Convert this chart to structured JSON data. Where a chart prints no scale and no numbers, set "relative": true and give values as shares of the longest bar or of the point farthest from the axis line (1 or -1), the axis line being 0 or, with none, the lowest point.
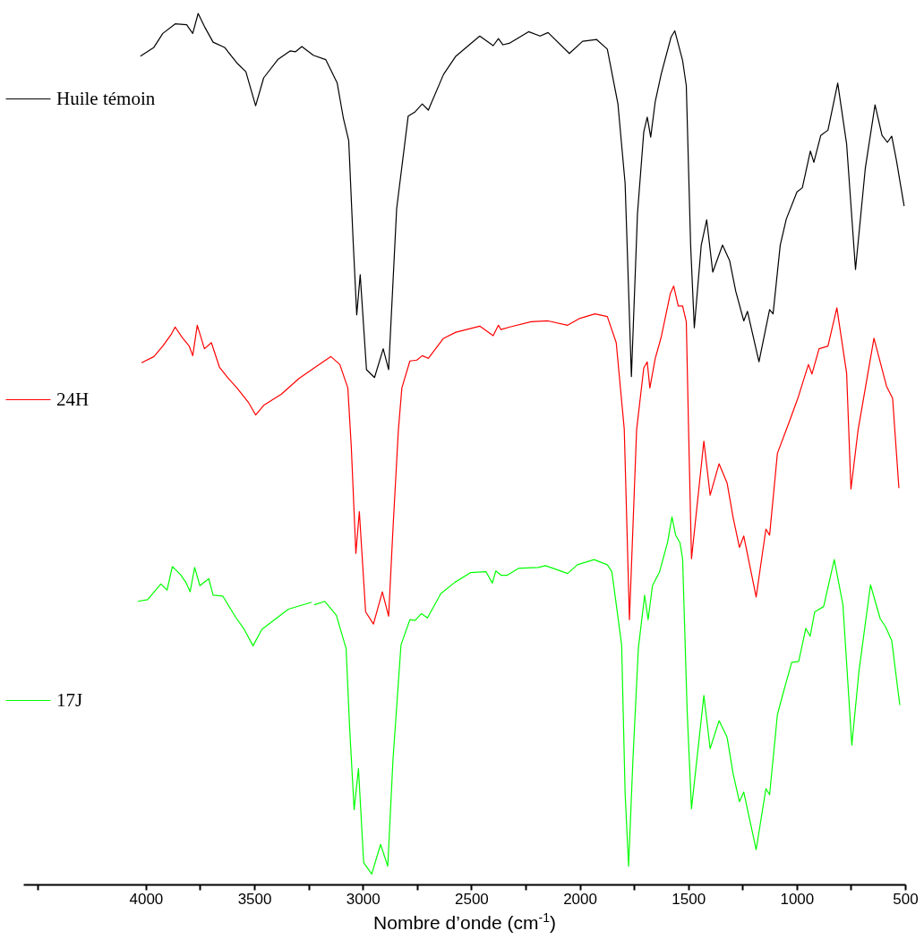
{
  "chart_data": {
    "type": "line",
    "relative": true,
    "xlabel": "Nombre d’onde (cm$^{-1}$)",
    "xlim": [
      4565,
      500
    ],
    "xticks": [
      {
        "value": 4500,
        "label": null
      },
      4000,
      {
        "value": 3750,
        "label": null
      },
      3500,
      {
        "value": 3250,
        "label": null
      },
      3000,
      {
        "value": 2750,
        "label": null
      },
      2500,
      {
        "value": 2250,
        "label": null
      },
      2000,
      {
        "value": 1750,
        "label": null
      },
      1500,
      {
        "value": 1250,
        "label": null
      },
      1000,
      {
        "value": 750,
        "label": null
      },
      500
    ],
    "tick_labels": "x",
    "grid": false,
    "legend": "top left",
    "marker": "none",
    "line_style": "solid",
    "series": [
      {
        "name": "Huile témoin",
        "color": "#000000",
        "x": [
          4025,
          3963,
          3922,
          3865,
          3812,
          3784,
          3759,
          3730,
          3690,
          3637,
          3580,
          3539,
          3494,
          3457,
          3392,
          3334,
          3310,
          3281,
          3228,
          3171,
          3118,
          3089,
          3065,
          3045,
          3028,
          3012,
          2983,
          2946,
          2906,
          2881,
          2844,
          2791,
          2759,
          2726,
          2698,
          2628,
          2571,
          2461,
          2399,
          2375,
          2354,
          2322,
          2236,
          2183,
          2146,
          2048,
          1987,
          1922,
          1873,
          1824,
          1791,
          1762,
          1734,
          1705,
          1689,
          1673,
          1652,
          1624,
          1579,
          1562,
          1526,
          1509,
          1489,
          1472,
          1440,
          1415,
          1387,
          1342,
          1309,
          1281,
          1244,
          1227,
          1174,
          1125,
          1109,
          1076,
          1048,
          999,
          974,
          937,
          921,
          889,
          856,
          811,
          770,
          729,
          684,
          639,
          607,
          582,
          562,
          541,
          505
        ],
        "values": [
          0.951,
          0.961,
          0.977,
          0.988,
          0.987,
          0.977,
          1.0,
          0.985,
          0.967,
          0.961,
          0.943,
          0.933,
          0.894,
          0.926,
          0.947,
          0.957,
          0.956,
          0.962,
          0.952,
          0.947,
          0.92,
          0.879,
          0.854,
          0.741,
          0.654,
          0.7,
          0.591,
          0.582,
          0.615,
          0.591,
          0.776,
          0.882,
          0.887,
          0.896,
          0.889,
          0.93,
          0.951,
          0.974,
          0.963,
          0.971,
          0.964,
          0.966,
          0.979,
          0.974,
          0.978,
          0.954,
          0.968,
          0.97,
          0.959,
          0.896,
          0.805,
          0.583,
          0.77,
          0.864,
          0.881,
          0.858,
          0.899,
          0.931,
          0.973,
          0.98,
          0.946,
          0.917,
          0.734,
          0.639,
          0.734,
          0.763,
          0.703,
          0.734,
          0.716,
          0.681,
          0.647,
          0.658,
          0.6,
          0.66,
          0.655,
          0.734,
          0.764,
          0.795,
          0.8,
          0.842,
          0.829,
          0.86,
          0.866,
          0.92,
          0.85,
          0.706,
          0.822,
          0.895,
          0.86,
          0.852,
          0.859,
          0.832,
          0.779
        ]
      },
      {
        "name": "24H",
        "color": "#ff0000",
        "x": [
          4020,
          3963,
          3922,
          3882,
          3865,
          3833,
          3800,
          3784,
          3763,
          3730,
          3698,
          3661,
          3620,
          3580,
          3526,
          3494,
          3457,
          3375,
          3294,
          3200,
          3147,
          3106,
          3069,
          3053,
          3032,
          3016,
          2987,
          2951,
          2910,
          2881,
          2861,
          2836,
          2820,
          2783,
          2751,
          2726,
          2698,
          2628,
          2571,
          2461,
          2399,
          2375,
          2363,
          2322,
          2224,
          2146,
          2056,
          1999,
          1930,
          1873,
          1832,
          1795,
          1771,
          1738,
          1705,
          1689,
          1677,
          1652,
          1624,
          1583,
          1567,
          1546,
          1526,
          1509,
          1497,
          1485,
          1428,
          1399,
          1358,
          1321,
          1293,
          1264,
          1244,
          1187,
          1142,
          1125,
          1089,
          1036,
          995,
          946,
          930,
          897,
          856,
          815,
          770,
          750,
          717,
          644,
          586,
          558,
          529
        ],
        "values": [
          0.599,
          0.606,
          0.618,
          0.632,
          0.64,
          0.628,
          0.618,
          0.607,
          0.642,
          0.615,
          0.622,
          0.594,
          0.581,
          0.57,
          0.553,
          0.539,
          0.55,
          0.563,
          0.581,
          0.597,
          0.606,
          0.597,
          0.57,
          0.502,
          0.38,
          0.428,
          0.313,
          0.299,
          0.336,
          0.308,
          0.408,
          0.522,
          0.57,
          0.601,
          0.602,
          0.607,
          0.604,
          0.627,
          0.634,
          0.641,
          0.63,
          0.642,
          0.637,
          0.64,
          0.646,
          0.647,
          0.642,
          0.65,
          0.655,
          0.652,
          0.622,
          0.523,
          0.304,
          0.522,
          0.593,
          0.6,
          0.57,
          0.604,
          0.629,
          0.678,
          0.687,
          0.664,
          0.664,
          0.646,
          0.506,
          0.374,
          0.509,
          0.447,
          0.483,
          0.461,
          0.421,
          0.387,
          0.4,
          0.33,
          0.408,
          0.401,
          0.495,
          0.53,
          0.558,
          0.597,
          0.586,
          0.615,
          0.618,
          0.662,
          0.587,
          0.454,
          0.522,
          0.627,
          0.572,
          0.558,
          0.455
        ]
      },
      {
        "name": "17J",
        "color": "#00ff00",
        "x": [
          4037,
          3992,
          3931,
          3902,
          3878,
          3841,
          3816,
          3796,
          3775,
          3751,
          3710,
          3690,
          3645,
          3584,
          3547,
          3506,
          3465,
          3343,
          3236,
          3230,
          3224,
          3175,
          3122,
          3077,
          3061,
          3040,
          3020,
          2996,
          2959,
          2918,
          2885,
          2861,
          2824,
          2783,
          2759,
          2730,
          2702,
          2640,
          2575,
          2504,
          2432,
          2403,
          2387,
          2363,
          2334,
          2281,
          2191,
          2158,
          2056,
          2011,
          1934,
          1873,
          1852,
          1807,
          1791,
          1775,
          1755,
          1730,
          1701,
          1685,
          1665,
          1632,
          1595,
          1575,
          1558,
          1538,
          1526,
          1505,
          1485,
          1428,
          1399,
          1358,
          1321,
          1293,
          1264,
          1244,
          1187,
          1142,
          1125,
          1089,
          1060,
          1023,
          991,
          958,
          938,
          917,
          876,
          827,
          787,
          746,
          713,
          660,
          615,
          591,
          562,
          525
        ],
        "values": [
          0.325,
          0.327,
          0.345,
          0.338,
          0.365,
          0.356,
          0.347,
          0.336,
          0.364,
          0.343,
          0.351,
          0.332,
          0.331,
          0.306,
          0.293,
          0.274,
          0.293,
          0.316,
          0.324,
          null,
          0.321,
          0.325,
          0.309,
          0.271,
          0.181,
          0.086,
          0.133,
          0.025,
          0.012,
          0.046,
          0.021,
          0.143,
          0.275,
          0.304,
          0.303,
          0.311,
          0.306,
          0.334,
          0.347,
          0.358,
          0.359,
          0.346,
          0.36,
          0.355,
          0.355,
          0.363,
          0.364,
          0.366,
          0.357,
          0.367,
          0.373,
          0.367,
          0.359,
          0.275,
          0.105,
          0.021,
          0.143,
          0.271,
          0.332,
          0.304,
          0.343,
          0.359,
          0.393,
          0.422,
          0.401,
          0.392,
          0.374,
          0.199,
          0.087,
          0.217,
          0.156,
          0.188,
          0.169,
          0.127,
          0.095,
          0.106,
          0.04,
          0.11,
          0.103,
          0.195,
          0.222,
          0.255,
          0.256,
          0.294,
          0.285,
          0.313,
          0.319,
          0.373,
          0.321,
          0.16,
          0.245,
          0.344,
          0.305,
          0.296,
          0.28,
          0.206
        ]
      }
    ]
  }
}
